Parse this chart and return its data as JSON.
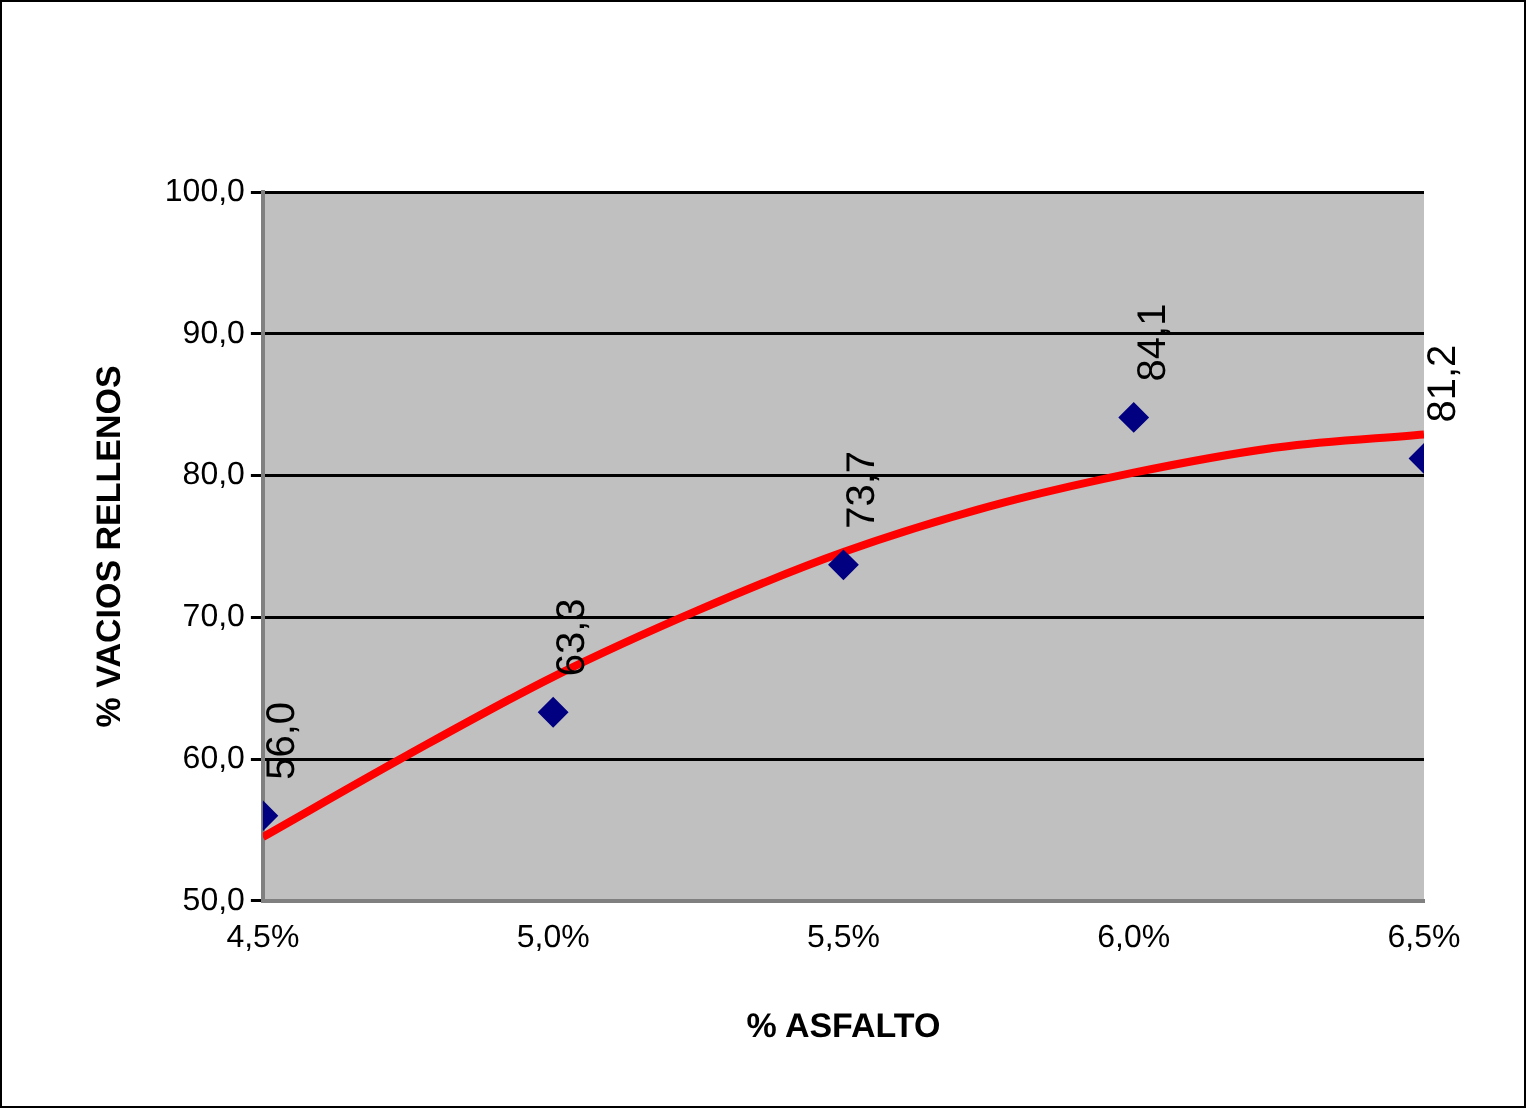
{
  "chart_data": {
    "type": "scatter",
    "xlabel": "% ASFALTO",
    "ylabel": "% VACIOS RELLENOS",
    "xlim": [
      4.5,
      6.5
    ],
    "xticks": [
      {
        "value": 4.5,
        "label": "4,5%"
      },
      {
        "value": 5.0,
        "label": "5,0%"
      },
      {
        "value": 5.5,
        "label": "5,5%"
      },
      {
        "value": 6.0,
        "label": "6,0%"
      },
      {
        "value": 6.5,
        "label": "6,5%"
      }
    ],
    "ylim": [
      50,
      100
    ],
    "yticks": [
      {
        "value": 50,
        "label": "50,0"
      },
      {
        "value": 60,
        "label": "60,0"
      },
      {
        "value": 70,
        "label": "70,0"
      },
      {
        "value": 80,
        "label": "80,0"
      },
      {
        "value": 90,
        "label": "90,0"
      },
      {
        "value": 100,
        "label": "100,0"
      }
    ],
    "grid": "y",
    "legend": false,
    "series": [
      {
        "color": "#000080",
        "marker": "diamond",
        "x": [
          4.5,
          5.0,
          5.5,
          6.0,
          6.5
        ],
        "values": [
          56.0,
          63.3,
          73.7,
          84.1,
          81.2
        ],
        "value_labels": [
          "56,0",
          "63,3",
          "73,7",
          "84,1",
          "81,2"
        ]
      },
      {
        "type": "line",
        "color": "#ff0000",
        "marker": "none",
        "line_style": "solid",
        "x": [
          4.5,
          4.75,
          5.0,
          5.25,
          5.5,
          5.75,
          6.0,
          6.25,
          6.5
        ],
        "values": [
          54.5,
          60.3,
          65.8,
          70.5,
          74.6,
          77.8,
          80.2,
          82.0,
          82.9
        ]
      }
    ]
  }
}
